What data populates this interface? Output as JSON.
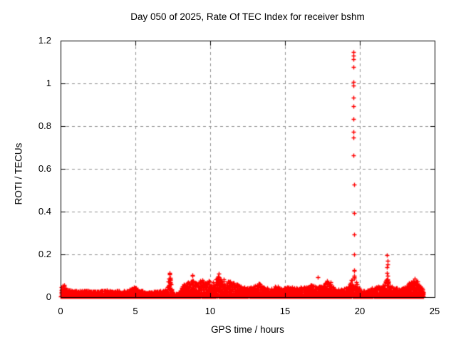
{
  "page": {
    "background": "#ffffff"
  },
  "chart_data": {
    "type": "scatter",
    "title": "Day 050 of 2025, Rate Of TEC Index for receiver bshm",
    "xlabel": "GPS time / hours",
    "ylabel": "ROTI / TECUs",
    "xlim": [
      0,
      25
    ],
    "ylim": [
      0,
      1.2
    ],
    "xticks": [
      {
        "value": 0,
        "label": "0"
      },
      {
        "value": 5,
        "label": "5"
      },
      {
        "value": 10,
        "label": "10"
      },
      {
        "value": 15,
        "label": "15"
      },
      {
        "value": 20,
        "label": "20"
      },
      {
        "value": 25,
        "label": "25"
      }
    ],
    "yticks": [
      {
        "value": 0,
        "label": "0"
      },
      {
        "value": 0.2,
        "label": "0.2"
      },
      {
        "value": 0.4,
        "label": "0.4"
      },
      {
        "value": 0.6,
        "label": "0.6"
      },
      {
        "value": 0.8,
        "label": "0.8"
      },
      {
        "value": 1,
        "label": "1"
      },
      {
        "value": 1.2,
        "label": "1.2"
      }
    ],
    "grid": {
      "show": true,
      "color": "#8f8f8f",
      "dash": [
        4,
        4
      ]
    },
    "legend": "none",
    "axis_color": "#000000",
    "text_color": "#000000",
    "marker": {
      "shape": "plus",
      "color": "#ff0000",
      "size": 7,
      "stroke": 1.4
    },
    "series": [
      {
        "name": "ROTI",
        "x_start": 0.02,
        "x_end": 24.25,
        "points_per_hour": 220,
        "seed": 1337,
        "y_floor": 0.002,
        "shape_exponent": 2.1,
        "noise_envelope": [
          [
            0,
            0.055
          ],
          [
            0.25,
            0.06
          ],
          [
            0.5,
            0.035
          ],
          [
            1,
            0.03
          ],
          [
            1.5,
            0.034
          ],
          [
            2,
            0.029
          ],
          [
            2.5,
            0.028
          ],
          [
            3,
            0.034
          ],
          [
            3.5,
            0.03
          ],
          [
            4,
            0.03
          ],
          [
            4.5,
            0.034
          ],
          [
            4.9,
            0.05
          ],
          [
            5.3,
            0.034
          ],
          [
            5.8,
            0.025
          ],
          [
            6.3,
            0.028
          ],
          [
            6.8,
            0.03
          ],
          [
            7.1,
            0.034
          ],
          [
            7.27,
            0.115
          ],
          [
            7.45,
            0.04
          ],
          [
            7.6,
            0.012
          ],
          [
            7.9,
            0.022
          ],
          [
            8.2,
            0.06
          ],
          [
            8.5,
            0.07
          ],
          [
            8.8,
            0.105
          ],
          [
            9.1,
            0.062
          ],
          [
            9.4,
            0.085
          ],
          [
            9.7,
            0.07
          ],
          [
            10,
            0.08
          ],
          [
            10.3,
            0.072
          ],
          [
            10.55,
            0.11
          ],
          [
            10.8,
            0.08
          ],
          [
            11.1,
            0.09
          ],
          [
            11.4,
            0.072
          ],
          [
            11.7,
            0.065
          ],
          [
            12,
            0.055
          ],
          [
            12.4,
            0.045
          ],
          [
            12.8,
            0.05
          ],
          [
            13.2,
            0.065
          ],
          [
            13.6,
            0.05
          ],
          [
            14,
            0.045
          ],
          [
            14.4,
            0.055
          ],
          [
            14.8,
            0.04
          ],
          [
            15.2,
            0.05
          ],
          [
            15.6,
            0.045
          ],
          [
            16,
            0.05
          ],
          [
            16.4,
            0.045
          ],
          [
            16.8,
            0.06
          ],
          [
            17.1,
            0.05
          ],
          [
            17.5,
            0.055
          ],
          [
            17.9,
            0.095
          ],
          [
            18.1,
            0.06
          ],
          [
            18.4,
            0.04
          ],
          [
            18.8,
            0.035
          ],
          [
            19.2,
            0.045
          ],
          [
            19.45,
            0.08
          ],
          [
            19.6,
            0.13
          ],
          [
            19.85,
            0.06
          ],
          [
            20.1,
            0.03
          ],
          [
            20.5,
            0.035
          ],
          [
            20.9,
            0.045
          ],
          [
            21.3,
            0.05
          ],
          [
            21.6,
            0.06
          ],
          [
            21.8,
            0.095
          ],
          [
            22,
            0.06
          ],
          [
            22.3,
            0.045
          ],
          [
            22.7,
            0.04
          ],
          [
            23,
            0.05
          ],
          [
            23.3,
            0.065
          ],
          [
            23.6,
            0.085
          ],
          [
            23.9,
            0.07
          ],
          [
            24.1,
            0.05
          ],
          [
            24.25,
            0.03
          ]
        ],
        "outliers": [
          [
            19.56,
            1.147
          ],
          [
            19.56,
            1.13
          ],
          [
            19.57,
            1.113
          ],
          [
            19.56,
            1.077
          ],
          [
            19.55,
            1.007
          ],
          [
            19.56,
            0.99
          ],
          [
            19.55,
            0.933
          ],
          [
            19.56,
            0.893
          ],
          [
            19.55,
            0.833
          ],
          [
            19.57,
            0.773
          ],
          [
            19.55,
            0.747
          ],
          [
            19.56,
            0.663
          ],
          [
            19.6,
            0.527
          ],
          [
            19.6,
            0.393
          ],
          [
            19.6,
            0.293
          ],
          [
            19.63,
            0.2
          ],
          [
            19.64,
            0.123
          ],
          [
            21.82,
            0.197
          ],
          [
            21.85,
            0.17
          ],
          [
            21.85,
            0.155
          ],
          [
            21.83,
            0.14
          ],
          [
            21.8,
            0.115
          ],
          [
            21.87,
            0.1
          ],
          [
            21.84,
            0.085
          ],
          [
            17.17,
            0.095
          ],
          [
            7.27,
            0.115
          ],
          [
            8.8,
            0.105
          ],
          [
            10.55,
            0.11
          ],
          [
            0.22,
            0.057
          ],
          [
            23.65,
            0.088
          ]
        ]
      }
    ]
  }
}
